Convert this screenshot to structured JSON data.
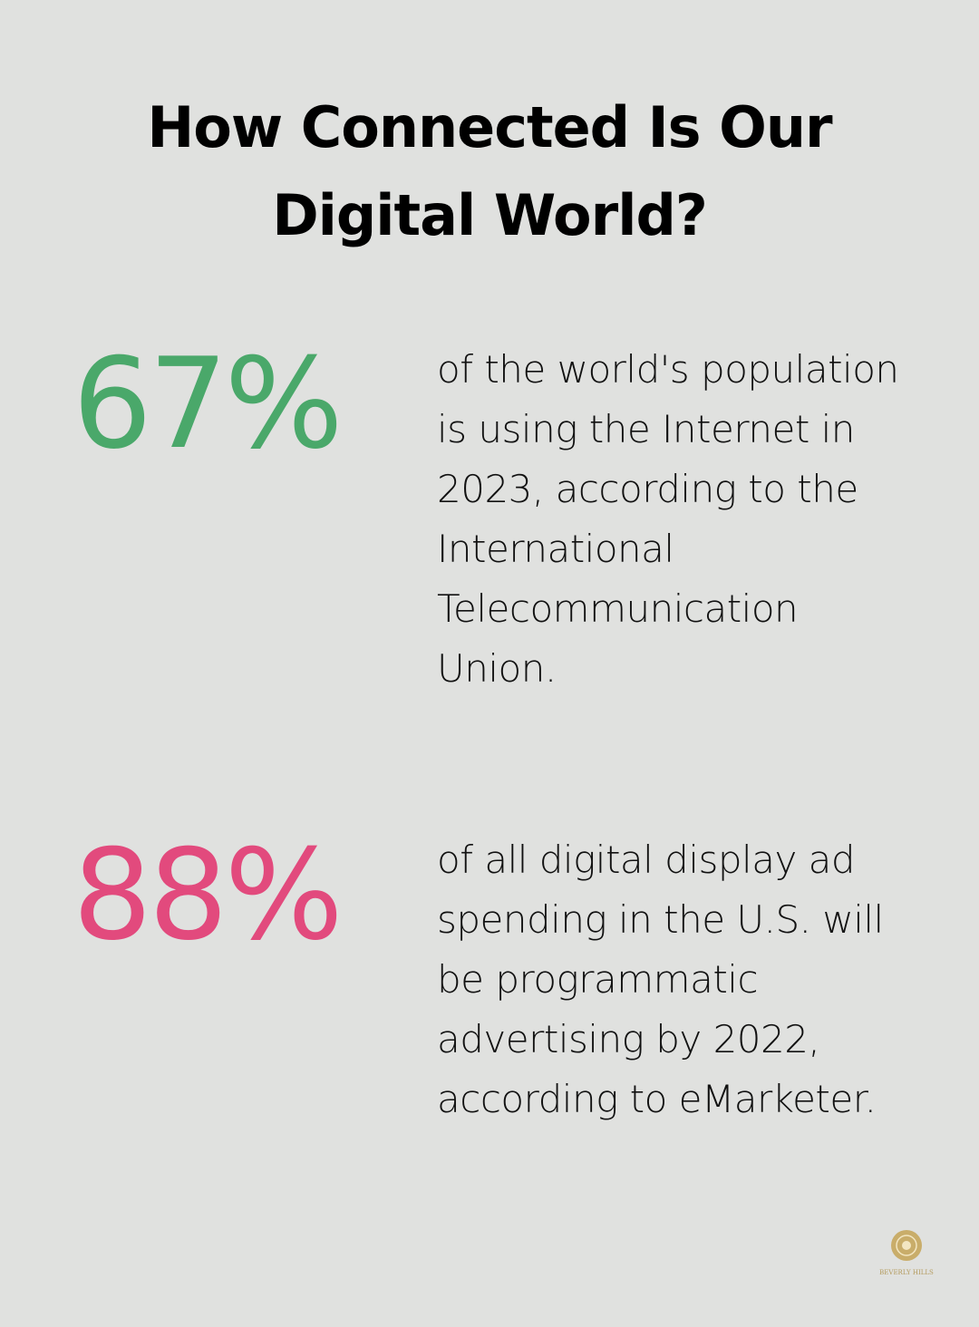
{
  "header": {
    "title": "How Connected Is Our Digital World?"
  },
  "stats": [
    {
      "figure": "67%",
      "text": "of the world's population is using the Internet in 2023, according to the International Telecommunication Union."
    },
    {
      "figure": "88%",
      "text": "of all digital display ad spending in the U.S. will be programmatic advertising by 2022, according to eMarketer."
    }
  ],
  "logo": {
    "label": "BEVERLY HILLS"
  }
}
